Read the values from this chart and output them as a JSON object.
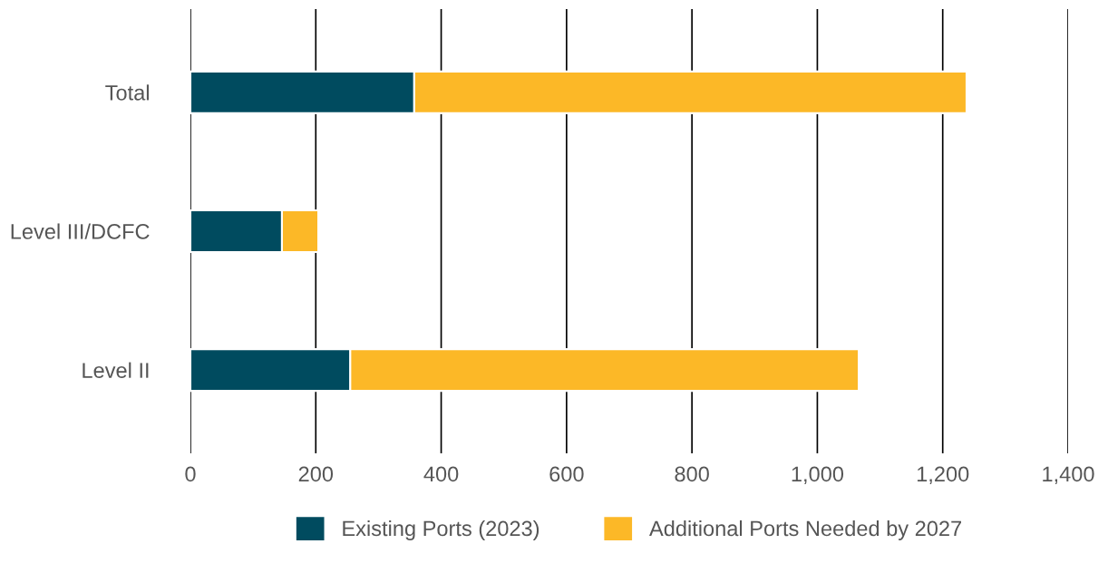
{
  "chart_data": {
    "type": "bar",
    "orientation": "horizontal",
    "stacked": true,
    "categories": [
      "Total",
      "Level III/DCFC",
      "Level II"
    ],
    "series": [
      {
        "name": "Existing Ports (2023)",
        "color": "#004b5f",
        "values": [
          357,
          146,
          255
        ]
      },
      {
        "name": "Additional Ports Needed by 2027",
        "color": "#fcb827",
        "values": [
          881,
          58,
          811
        ]
      }
    ],
    "xlim": [
      0,
      1400
    ],
    "xticks": [
      0,
      200,
      400,
      600,
      800,
      {
        "value": 1000,
        "label": "1,000"
      },
      {
        "value": 1200,
        "label": "1,200"
      },
      {
        "value": 1400,
        "label": "1,400"
      }
    ],
    "grid": "x",
    "legend": "bottom"
  }
}
